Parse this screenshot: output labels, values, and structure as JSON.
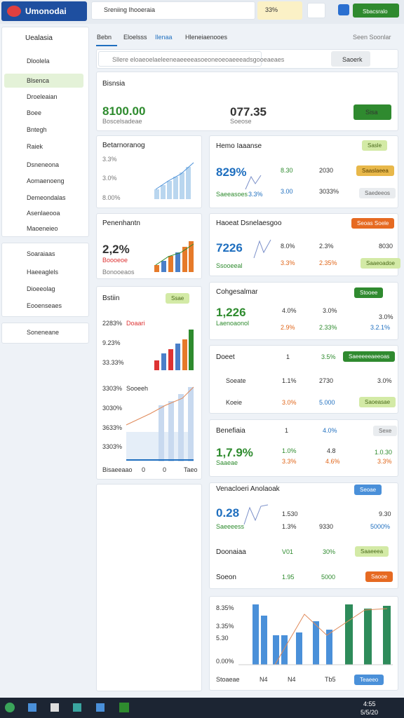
{
  "topbar": {
    "brand": "Umonodai",
    "search": "Sreniing Ihooeraia",
    "badge": "33%",
    "button": "Sbacsralo"
  },
  "sidebar": {
    "user": "Uealasia",
    "items": [
      "Dloolela",
      "Blsenca",
      "Droeleaian",
      "Boee",
      "Bntegh",
      "Raiek",
      "Dsneneona",
      "Aomaenoeng",
      "Demeondalas",
      "Asenlaeooa",
      "Maoeneieo"
    ],
    "section2": [
      "Soaraiaas",
      "Haeeaglels",
      "Dioeeolag",
      "Eooenseaes"
    ],
    "footer": "Soneneane"
  },
  "tabs": {
    "items": [
      "Bebn",
      "Eloelsss",
      "Ilenaa",
      "Hleneiaenooes"
    ],
    "right": "Seen Soonlar"
  },
  "search": {
    "placeholder": "Sllere eloaeoelaeleeneaeeeeasoeoneoeoaeeeadsgooeaeaes",
    "button": "Saoerk"
  },
  "header": {
    "title": "Bisnsia",
    "value1": "8100.00",
    "value1_sub": "Boscelsadeae",
    "value2": "077.35",
    "value2_sub": "Soeose",
    "button": "Sisa"
  },
  "left_cards": [
    {
      "title": "Betarnoranog",
      "labels": [
        "3.3%",
        "3.0%",
        "8.00%"
      ]
    },
    {
      "title": "Penenhantn",
      "value": "2,2%",
      "sub": "Boooeoe",
      "note": "Bonooeaos"
    },
    {
      "title": "Bstiin",
      "pill": "Ssae",
      "labels": [
        "2283%",
        "Doaari",
        "9.23%",
        "33.33%"
      ]
    },
    {
      "labels": [
        "3303%",
        "Sooeeh",
        "3030%",
        "3633%",
        "3303%"
      ],
      "x_labels": [
        "Bisaeeaao",
        "0",
        "0",
        "Taeo"
      ]
    }
  ],
  "right_cards": [
    {
      "title": "Hemo Iaaanse",
      "pill": "Sasle",
      "value": "829%",
      "sub": "Saeeasoes",
      "cells": [
        "8.30",
        "2030",
        "3.3%",
        "3.00",
        "3033%"
      ],
      "pills": [
        "Saaslaeea",
        "Saedeeos"
      ]
    },
    {
      "title": "Haoeat Dsnelaesgoo",
      "pill": "Seoas Soele",
      "value": "7226",
      "sub": "Ssooeeal",
      "cells": [
        "8.0%",
        "2.3%",
        "8030",
        "3.3%",
        "2.35%"
      ],
      "pills": [
        "Saaeoadoe"
      ]
    },
    {
      "title": "Cohgesalmar",
      "pill": "Stooee",
      "value": "1,226",
      "sub": "Laenoaonol",
      "cells": [
        "4.0%",
        "3.0%",
        "3.0%",
        "2.9%",
        "2.33%",
        "3.2.1%"
      ]
    },
    {
      "rows": [
        [
          "Doeet",
          "1",
          "3.5%"
        ],
        [
          "Soeate",
          "1.1%",
          "2730",
          "3.0%"
        ],
        [
          "Koeie",
          "3.0%",
          "5.000"
        ]
      ],
      "pills": [
        "Saeeeeeaeeoas",
        "Saoeasae"
      ]
    },
    {
      "title": "Benefiaia",
      "cells": [
        "1",
        "4.0%",
        "1.0%",
        "4.8",
        "3.3%",
        "4.6%",
        "1.0.30",
        "3.3%"
      ],
      "pill": "Sexe",
      "value": "1,7.9%",
      "sub": "Saaeae"
    },
    {
      "title": "Venacloeri Anolaoak",
      "pill": "Seoae",
      "value": "0.28",
      "sub": "Saeeeess",
      "cells": [
        "1.530",
        "9.30",
        "1.3%",
        "9330",
        "5000%"
      ],
      "rows": [
        [
          "Doonaiaa",
          "V01",
          "30%"
        ],
        [
          "Soeon",
          "1.95",
          "5000"
        ]
      ],
      "pills": [
        "Saaeeea",
        "Saooe"
      ]
    }
  ],
  "bottom_chart": {
    "y_labels": [
      "8.35%",
      "3.35%",
      "5.30",
      "0.00%"
    ],
    "x_labels": [
      "Stoaeae",
      "N4",
      "N4",
      "Tb5"
    ],
    "button": "Teaeeo"
  },
  "taskbar": {
    "time": "4:55",
    "date": "5/5/20"
  }
}
